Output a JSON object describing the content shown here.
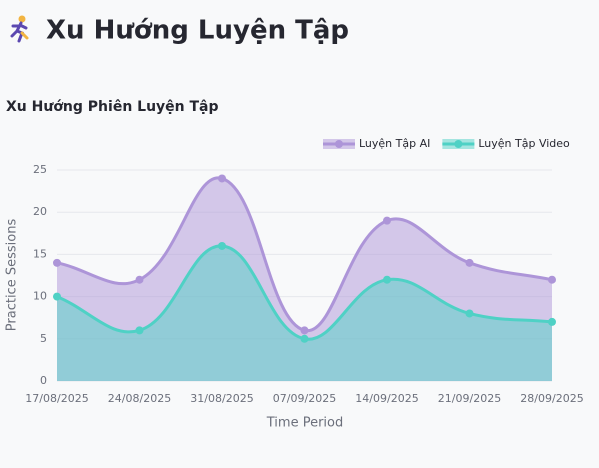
{
  "header": {
    "title": "Xu Hướng Luyện Tập"
  },
  "chart_data": {
    "type": "area",
    "title": "Xu Hướng Phiên Luyện Tập",
    "x_label": "Time Period",
    "y_label": "Practice Sessions",
    "categories": [
      "17/08/2025",
      "24/08/2025",
      "31/08/2025",
      "07/09/2025",
      "14/09/2025",
      "21/09/2025",
      "28/09/2025"
    ],
    "series": [
      {
        "name": "Luyện Tập AI",
        "color": "#ad95d8",
        "values": [
          14,
          12,
          24,
          6,
          19,
          14,
          12
        ]
      },
      {
        "name": "Luyện Tập Video",
        "color": "#4fd1c5",
        "values": [
          10,
          6,
          16,
          5,
          12,
          8,
          7
        ]
      }
    ],
    "ylim": [
      0,
      25
    ],
    "yticks": [
      0,
      5,
      10,
      15,
      20,
      25
    ],
    "grid": true,
    "legend": "top-right"
  }
}
